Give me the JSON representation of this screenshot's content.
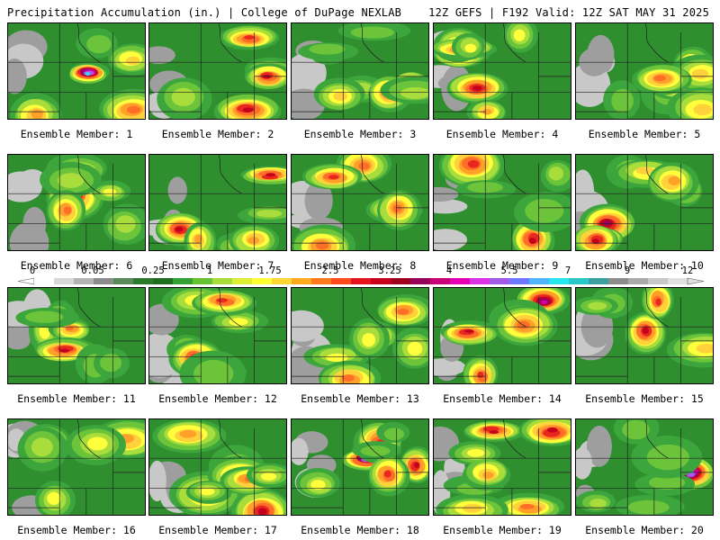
{
  "header": {
    "title": "Precipitation Accumulation (in.) | College of DuPage NEXLAB",
    "valid": "12Z GEFS | F192 Valid: 12Z SAT MAY 31 2025"
  },
  "legend": {
    "ticks": [
      "0",
      "0.05",
      "0.25",
      "1",
      "1.75",
      "2.5",
      "3.25",
      "4",
      "5.5",
      "7",
      "9",
      "12"
    ],
    "colors": [
      "#ffffff",
      "#d8d8d8",
      "#b4b4b4",
      "#8c8c8c",
      "#5a8a5a",
      "#2d7a2d",
      "#1e6e1e",
      "#33a033",
      "#66c233",
      "#a8dc3a",
      "#dcee33",
      "#ffff33",
      "#ffd633",
      "#ffaa1e",
      "#ff7a1e",
      "#ff4a1e",
      "#e6141e",
      "#c8001e",
      "#a0001e",
      "#96005a",
      "#c8007a",
      "#e600b4",
      "#dc32e6",
      "#a05ae6",
      "#6e78ff",
      "#50b4ff",
      "#28e6f0",
      "#28c8c8",
      "#3ca0a0",
      "#8c8c8c",
      "#aaaaaa",
      "#c8c8c8",
      "#e0e0e0"
    ]
  },
  "members": [
    {
      "label": "Ensemble Member: 1"
    },
    {
      "label": "Ensemble Member: 2"
    },
    {
      "label": "Ensemble Member: 3"
    },
    {
      "label": "Ensemble Member: 4"
    },
    {
      "label": "Ensemble Member: 5"
    },
    {
      "label": "Ensemble Member: 6"
    },
    {
      "label": "Ensemble Member: 7"
    },
    {
      "label": "Ensemble Member: 8"
    },
    {
      "label": "Ensemble Member: 9"
    },
    {
      "label": "Ensemble Member: 10"
    },
    {
      "label": "Ensemble Member: 11"
    },
    {
      "label": "Ensemble Member: 12"
    },
    {
      "label": "Ensemble Member: 13"
    },
    {
      "label": "Ensemble Member: 14"
    },
    {
      "label": "Ensemble Member: 15"
    },
    {
      "label": "Ensemble Member: 16"
    },
    {
      "label": "Ensemble Member: 17"
    },
    {
      "label": "Ensemble Member: 18"
    },
    {
      "label": "Ensemble Member: 19"
    },
    {
      "label": "Ensemble Member: 20"
    }
  ]
}
